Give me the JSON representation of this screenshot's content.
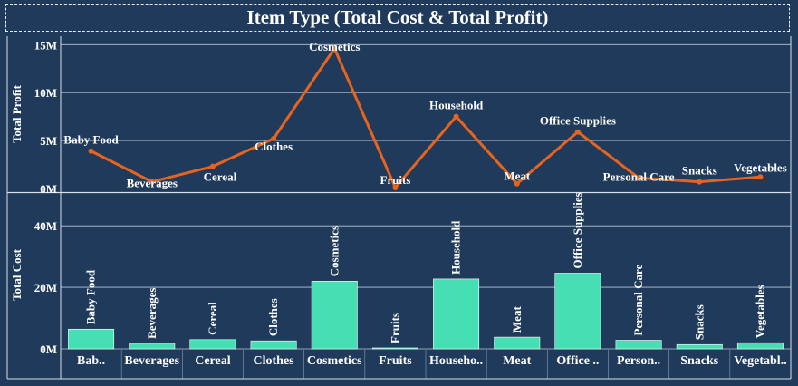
{
  "title": "Item Type (Total Cost & Total Profit)",
  "colors": {
    "background": "#1f3a5a",
    "line": "#e8641e",
    "bar": "#45dfb3",
    "grid": "#d8e0ea",
    "text": "#ffffff"
  },
  "chart_data": [
    {
      "type": "line",
      "title": "Item Type (Total Cost & Total Profit)",
      "ylabel": "Total Profit",
      "ylim": [
        0,
        15.5
      ],
      "yticks": [
        0,
        5,
        10,
        15
      ],
      "ytick_labels": [
        "0M",
        "5M",
        "10M",
        "15M"
      ],
      "grid": true,
      "categories": [
        "Baby Food",
        "Beverages",
        "Cereal",
        "Clothes",
        "Cosmetics",
        "Fruits",
        "Household",
        "Meat",
        "Office Supplies",
        "Personal Care",
        "Snacks",
        "Vegetables"
      ],
      "series": [
        {
          "values": [
            3.9,
            0.7,
            2.3,
            5.2,
            14.6,
            0.1,
            7.5,
            0.5,
            5.9,
            1.1,
            0.7,
            1.2
          ]
        }
      ],
      "data_labels": [
        "Baby Food",
        "Beverages",
        "Cereal",
        "Clothes",
        "Cosmetics",
        "Fruits",
        "Household",
        "Meat",
        "Office Supplies",
        "Personal Care",
        "Snacks",
        "Vegetables"
      ]
    },
    {
      "type": "bar",
      "xlabel": "",
      "ylabel": "Total Cost",
      "ylim": [
        0,
        48
      ],
      "yticks": [
        0,
        20,
        40
      ],
      "ytick_labels": [
        "0M",
        "20M",
        "40M"
      ],
      "grid": true,
      "categories": [
        "Baby Food",
        "Beverages",
        "Cereal",
        "Clothes",
        "Cosmetics",
        "Fruits",
        "Household",
        "Meat",
        "Office Supplies",
        "Personal Care",
        "Snacks",
        "Vegetables"
      ],
      "tick_labels": [
        "Bab..",
        "Beverages",
        "Cereal",
        "Clothes",
        "Cosmetics",
        "Fruits",
        "Househo..",
        "Meat",
        "Office ..",
        "Person..",
        "Snacks",
        "Vegetabl.."
      ],
      "series": [
        {
          "values": [
            6.4,
            1.8,
            3.0,
            2.6,
            22.0,
            0.3,
            22.7,
            3.8,
            24.6,
            2.8,
            1.4,
            2.0
          ]
        }
      ],
      "data_labels": [
        "Baby Food",
        "Beverages",
        "Cereal",
        "Clothes",
        "Cosmetics",
        "Fruits",
        "Household",
        "Meat",
        "Office Supplies",
        "Personal Care",
        "Snacks",
        "Vegetables"
      ]
    }
  ]
}
